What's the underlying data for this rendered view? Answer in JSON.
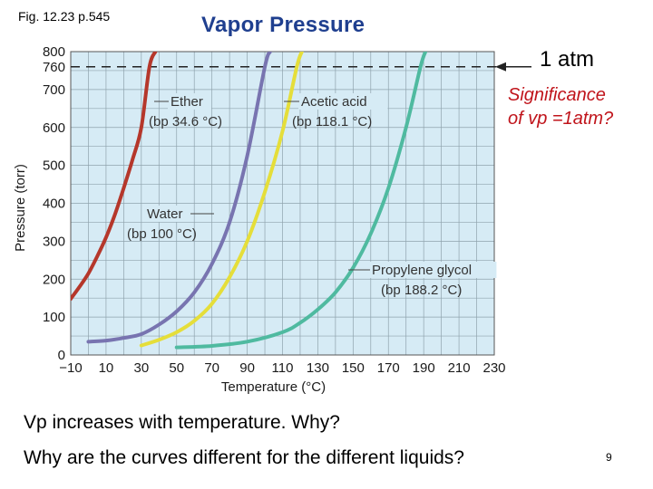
{
  "header": {
    "figure_ref": "Fig. 12.23 p.545",
    "title": "Vapor Pressure"
  },
  "callouts": {
    "atm": "1 atm",
    "significance_line1": "Significance",
    "significance_line2": "of vp =1atm?"
  },
  "questions": {
    "q1": "Vp increases with temperature. Why?",
    "q2": "Why are the curves different for the different liquids?"
  },
  "page_number": "9",
  "colors": {
    "plot_bg": "#d6ebf5",
    "grid": "#8fa3ad",
    "title": "#1f3f8f",
    "significance": "#c0141b"
  },
  "chart_data": {
    "type": "line",
    "xlabel": "Temperature (°C)",
    "ylabel": "Pressure (torr)",
    "xlim": [
      -10,
      230
    ],
    "ylim": [
      0,
      800
    ],
    "x_ticks": [
      "−10",
      "10",
      "30",
      "50",
      "70",
      "90",
      "110",
      "130",
      "150",
      "170",
      "190",
      "210",
      "230"
    ],
    "y_ticks": [
      "0",
      "100",
      "200",
      "300",
      "400",
      "500",
      "600",
      "700",
      "760",
      "800"
    ],
    "grid": true,
    "reference_line": {
      "y": 760,
      "style": "dashed",
      "color": "#222222"
    },
    "series": [
      {
        "name": "Ether",
        "bp": "(bp 34.6 °C)",
        "color": "#b5372b",
        "x": [
          -10,
          -5,
          0,
          5,
          10,
          15,
          20,
          25,
          30,
          34.6,
          38
        ],
        "y": [
          148,
          180,
          215,
          260,
          310,
          370,
          440,
          515,
          600,
          760,
          800
        ]
      },
      {
        "name": "Water",
        "bp": "(bp 100 °C)",
        "color": "#7874b0",
        "x": [
          0,
          10,
          20,
          30,
          40,
          50,
          60,
          70,
          80,
          90,
          100,
          103
        ],
        "y": [
          35,
          38,
          45,
          55,
          80,
          115,
          165,
          240,
          350,
          525,
          760,
          800
        ]
      },
      {
        "name": "Acetic acid",
        "bp": "(bp 118.1 °C)",
        "color": "#e5de3a",
        "x": [
          30,
          40,
          50,
          60,
          70,
          80,
          90,
          100,
          110,
          118.1,
          121
        ],
        "y": [
          25,
          40,
          60,
          90,
          135,
          205,
          300,
          430,
          590,
          760,
          800
        ]
      },
      {
        "name": "Propylene glycol",
        "bp": "(bp 188.2 °C)",
        "color": "#4fbaa0",
        "x": [
          50,
          70,
          90,
          110,
          120,
          130,
          140,
          150,
          160,
          170,
          180,
          188.2,
          191
        ],
        "y": [
          20,
          24,
          35,
          60,
          85,
          120,
          165,
          230,
          320,
          440,
          600,
          760,
          800
        ]
      }
    ]
  }
}
